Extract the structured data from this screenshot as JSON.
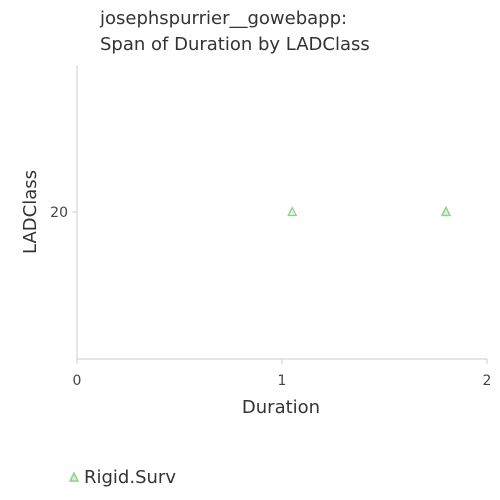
{
  "chart_data": {
    "type": "scatter",
    "title_lines": [
      "josephspurrier__gowebapp:",
      "Span of Duration by LADClass"
    ],
    "xlabel": "Duration",
    "ylabel": "LADClass",
    "xlim": [
      0,
      2
    ],
    "x_ticks": [
      "0",
      "1",
      "2"
    ],
    "y_ticks": [
      "20"
    ],
    "y_tick_values": [
      20
    ],
    "grid": false,
    "legend_position": "bottom-left",
    "series": [
      {
        "name": "Rigid.Surv",
        "marker": "triangle",
        "color": "#8fce8f",
        "points": [
          {
            "x": 1.05,
            "y": 20
          },
          {
            "x": 1.8,
            "y": 20
          },
          {
            "x": 1.8,
            "y": 20
          }
        ]
      }
    ]
  }
}
